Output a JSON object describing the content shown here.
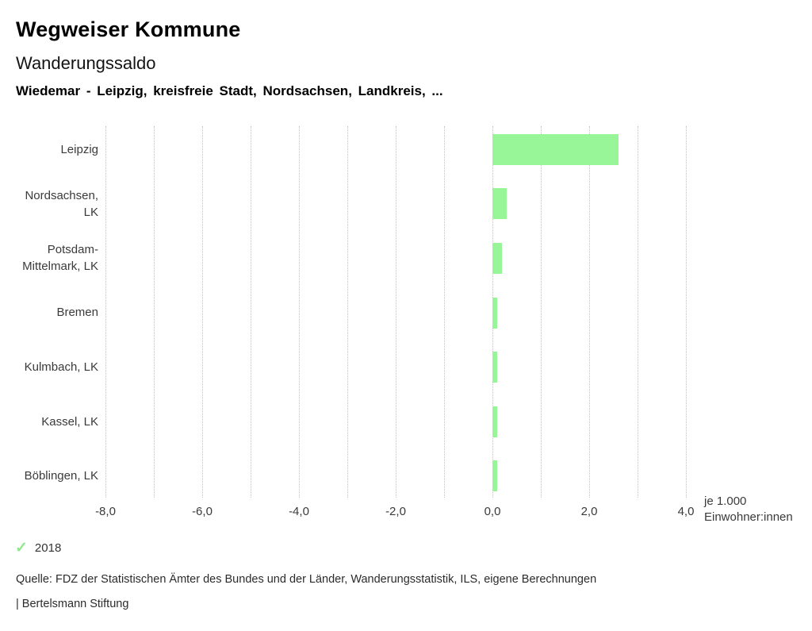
{
  "header": {
    "brand": "Wegweiser Kommune",
    "title": "Wanderungssaldo",
    "subtitle": "Wiedemar - Leipzig, kreisfreie Stadt, Nordsachsen, Landkreis, ..."
  },
  "chart_data": {
    "type": "bar",
    "orientation": "horizontal",
    "title": "Wanderungssaldo",
    "categories": [
      "Leipzig",
      "Nordsachsen,\nLK",
      "Potsdam-\nMittelmark, LK",
      "Bremen",
      "Kulmbach, LK",
      "Kassel, LK",
      "Böblingen, LK"
    ],
    "series": [
      {
        "name": "2018",
        "values": [
          2.6,
          0.3,
          0.2,
          0.1,
          0.1,
          0.1,
          0.1
        ],
        "color": "#98f698"
      }
    ],
    "xlim": [
      -8,
      4
    ],
    "x_minor_step": 1,
    "x_tick_step": 2,
    "x_tick_labels": [
      "-8,0",
      "-6,0",
      "-4,0",
      "-2,0",
      "0,0",
      "2,0",
      "4,0"
    ],
    "grid": "vertical-dotted",
    "gridline_color": "#c2c2c2",
    "unit_label": [
      "je 1.000",
      "Einwohner:innen"
    ],
    "legend_position": "bottom-left"
  },
  "legend": {
    "items": [
      {
        "icon": "check-icon",
        "glyph": "✓",
        "label": "2018",
        "color": "#8fe98f",
        "active": true
      }
    ]
  },
  "footer": {
    "source": "Quelle: FDZ der Statistischen Ämter des Bundes und der Länder, Wanderungsstatistik, ILS, eigene Berechnungen",
    "branding": "| Bertelsmann Stiftung"
  }
}
